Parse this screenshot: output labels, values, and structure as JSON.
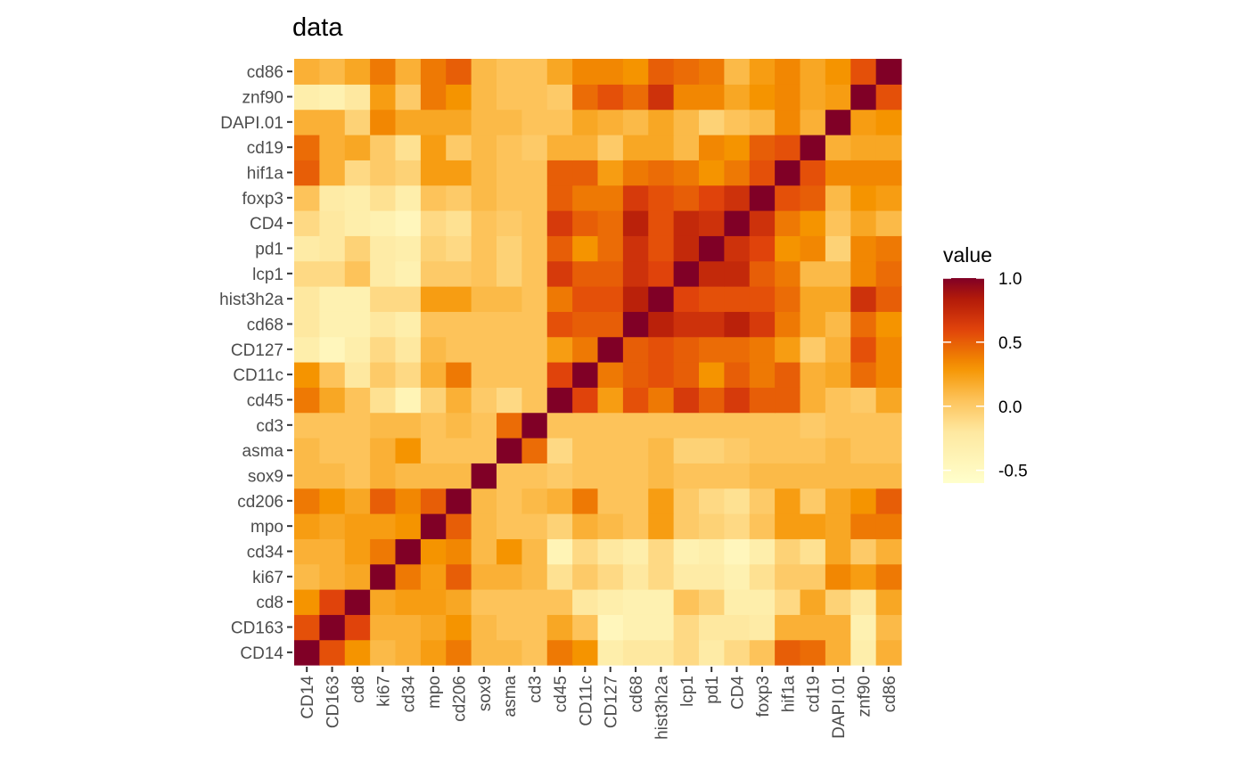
{
  "chart_data": {
    "type": "heatmap",
    "title": "data",
    "xlabel": "",
    "ylabel": "",
    "variables": [
      "CD14",
      "CD163",
      "cd8",
      "ki67",
      "cd34",
      "mpo",
      "cd206",
      "sox9",
      "asma",
      "cd3",
      "cd45",
      "CD11c",
      "CD127",
      "cd68",
      "hist3h2a",
      "lcp1",
      "pd1",
      "CD4",
      "foxp3",
      "hif1a",
      "cd19",
      "DAPI.01",
      "znf90",
      "cd86"
    ],
    "values": [
      [
        1.0,
        0.55,
        0.3,
        0.1,
        0.15,
        0.25,
        0.4,
        0.1,
        0.1,
        0.05,
        0.4,
        0.3,
        -0.3,
        -0.2,
        -0.2,
        -0.1,
        -0.25,
        -0.1,
        0.05,
        0.5,
        0.45,
        0.15,
        -0.3,
        0.15
      ],
      [
        0.55,
        1.0,
        0.6,
        0.15,
        0.15,
        0.2,
        0.3,
        0.1,
        0.05,
        0.05,
        0.2,
        0.05,
        -0.45,
        -0.35,
        -0.35,
        -0.1,
        -0.2,
        -0.2,
        -0.25,
        0.15,
        0.15,
        0.15,
        -0.35,
        0.1
      ],
      [
        0.3,
        0.6,
        1.0,
        0.2,
        0.25,
        0.25,
        0.2,
        0.05,
        0.05,
        0.05,
        0.05,
        -0.2,
        -0.3,
        -0.35,
        -0.35,
        0.05,
        -0.05,
        -0.3,
        -0.3,
        -0.1,
        0.2,
        -0.05,
        -0.2,
        0.2
      ],
      [
        0.1,
        0.15,
        0.2,
        1.0,
        0.4,
        0.25,
        0.5,
        0.15,
        0.15,
        0.1,
        -0.15,
        0.0,
        -0.1,
        -0.2,
        -0.1,
        -0.25,
        -0.25,
        -0.35,
        -0.15,
        0.0,
        0.0,
        0.35,
        0.25,
        0.4
      ],
      [
        0.15,
        0.15,
        0.25,
        0.4,
        1.0,
        0.3,
        0.35,
        0.1,
        0.3,
        0.1,
        -0.4,
        -0.1,
        -0.2,
        -0.3,
        -0.1,
        -0.35,
        -0.3,
        -0.45,
        -0.3,
        -0.05,
        -0.15,
        0.2,
        0.0,
        0.15
      ],
      [
        0.25,
        0.2,
        0.25,
        0.25,
        0.3,
        1.0,
        0.5,
        0.1,
        0.05,
        0.05,
        -0.05,
        0.15,
        0.1,
        0.05,
        0.25,
        0.0,
        -0.05,
        -0.1,
        0.05,
        0.25,
        0.25,
        0.2,
        0.4,
        0.4
      ],
      [
        0.4,
        0.3,
        0.2,
        0.5,
        0.35,
        0.5,
        1.0,
        0.1,
        0.05,
        0.1,
        0.15,
        0.4,
        0.05,
        0.05,
        0.25,
        0.0,
        -0.1,
        -0.15,
        0.0,
        0.25,
        0.0,
        0.2,
        0.3,
        0.5
      ],
      [
        0.1,
        0.1,
        0.05,
        0.15,
        0.1,
        0.1,
        0.1,
        1.0,
        0.05,
        0.05,
        0.0,
        0.05,
        0.05,
        0.05,
        0.1,
        0.05,
        0.05,
        0.05,
        0.1,
        0.1,
        0.1,
        0.1,
        0.1,
        0.1
      ],
      [
        0.1,
        0.05,
        0.05,
        0.15,
        0.3,
        0.05,
        0.05,
        0.05,
        1.0,
        0.45,
        -0.1,
        0.05,
        0.05,
        0.05,
        0.1,
        -0.05,
        -0.05,
        0.0,
        0.05,
        0.05,
        0.05,
        0.1,
        0.05,
        0.05
      ],
      [
        0.05,
        0.05,
        0.05,
        0.1,
        0.1,
        0.05,
        0.1,
        0.05,
        0.45,
        1.0,
        0.05,
        0.05,
        0.05,
        0.05,
        0.05,
        0.05,
        0.05,
        0.05,
        0.05,
        0.05,
        0.0,
        0.05,
        0.05,
        0.05
      ],
      [
        0.4,
        0.2,
        0.05,
        -0.15,
        -0.4,
        -0.05,
        0.15,
        0.0,
        -0.1,
        0.05,
        1.0,
        0.6,
        0.25,
        0.55,
        0.4,
        0.65,
        0.5,
        0.65,
        0.5,
        0.5,
        0.15,
        0.05,
        0.0,
        0.2
      ],
      [
        0.3,
        0.05,
        -0.2,
        0.0,
        -0.1,
        0.15,
        0.4,
        0.05,
        0.05,
        0.05,
        0.6,
        1.0,
        0.4,
        0.5,
        0.55,
        0.5,
        0.3,
        0.5,
        0.4,
        0.5,
        0.15,
        0.2,
        0.45,
        0.35
      ],
      [
        -0.3,
        -0.45,
        -0.3,
        -0.1,
        -0.2,
        0.1,
        0.05,
        0.05,
        0.05,
        0.05,
        0.25,
        0.4,
        1.0,
        0.5,
        0.55,
        0.5,
        0.45,
        0.45,
        0.4,
        0.25,
        0.0,
        0.15,
        0.55,
        0.35
      ],
      [
        -0.2,
        -0.35,
        -0.35,
        -0.2,
        -0.3,
        0.05,
        0.05,
        0.05,
        0.05,
        0.05,
        0.55,
        0.5,
        0.5,
        1.0,
        0.8,
        0.7,
        0.7,
        0.8,
        0.65,
        0.4,
        0.2,
        0.1,
        0.45,
        0.3
      ],
      [
        -0.2,
        -0.35,
        -0.35,
        -0.1,
        -0.1,
        0.25,
        0.25,
        0.1,
        0.1,
        0.05,
        0.4,
        0.55,
        0.55,
        0.8,
        1.0,
        0.6,
        0.55,
        0.55,
        0.55,
        0.45,
        0.2,
        0.2,
        0.7,
        0.5
      ],
      [
        -0.1,
        -0.1,
        0.05,
        -0.25,
        -0.35,
        0.0,
        0.0,
        0.05,
        -0.05,
        0.05,
        0.65,
        0.5,
        0.5,
        0.7,
        0.6,
        1.0,
        0.75,
        0.75,
        0.5,
        0.4,
        0.1,
        0.1,
        0.35,
        0.45
      ],
      [
        -0.25,
        -0.2,
        -0.05,
        -0.25,
        -0.3,
        -0.05,
        -0.1,
        0.05,
        -0.05,
        0.05,
        0.5,
        0.3,
        0.45,
        0.7,
        0.55,
        0.75,
        1.0,
        0.7,
        0.6,
        0.3,
        0.35,
        -0.05,
        0.35,
        0.4
      ],
      [
        -0.1,
        -0.2,
        -0.3,
        -0.35,
        -0.45,
        -0.1,
        -0.15,
        0.05,
        0.0,
        0.05,
        0.65,
        0.5,
        0.45,
        0.8,
        0.55,
        0.75,
        0.7,
        1.0,
        0.7,
        0.4,
        0.3,
        0.05,
        0.2,
        0.1
      ],
      [
        0.05,
        -0.25,
        -0.3,
        -0.15,
        -0.3,
        0.05,
        0.0,
        0.1,
        0.05,
        0.05,
        0.5,
        0.4,
        0.4,
        0.65,
        0.55,
        0.5,
        0.6,
        0.7,
        1.0,
        0.55,
        0.5,
        0.1,
        0.3,
        0.25
      ],
      [
        0.5,
        0.15,
        -0.1,
        0.0,
        -0.05,
        0.25,
        0.25,
        0.1,
        0.05,
        0.05,
        0.5,
        0.5,
        0.25,
        0.4,
        0.45,
        0.4,
        0.3,
        0.4,
        0.55,
        1.0,
        0.55,
        0.35,
        0.35,
        0.35
      ],
      [
        0.45,
        0.15,
        0.2,
        0.0,
        -0.15,
        0.25,
        0.0,
        0.1,
        0.05,
        0.0,
        0.15,
        0.15,
        0.0,
        0.2,
        0.2,
        0.1,
        0.35,
        0.3,
        0.5,
        0.55,
        1.0,
        0.15,
        0.2,
        0.2
      ],
      [
        0.15,
        0.15,
        -0.05,
        0.35,
        0.2,
        0.2,
        0.2,
        0.1,
        0.1,
        0.05,
        0.05,
        0.2,
        0.15,
        0.1,
        0.2,
        0.1,
        -0.05,
        0.05,
        0.1,
        0.35,
        0.15,
        1.0,
        0.25,
        0.3
      ],
      [
        -0.3,
        -0.35,
        -0.2,
        0.25,
        0.0,
        0.4,
        0.3,
        0.1,
        0.05,
        0.05,
        0.0,
        0.45,
        0.55,
        0.45,
        0.7,
        0.35,
        0.35,
        0.2,
        0.3,
        0.35,
        0.2,
        0.25,
        1.0,
        0.55
      ],
      [
        0.15,
        0.1,
        0.2,
        0.4,
        0.15,
        0.4,
        0.5,
        0.1,
        0.05,
        0.05,
        0.2,
        0.35,
        0.35,
        0.3,
        0.5,
        0.45,
        0.4,
        0.1,
        0.25,
        0.35,
        0.2,
        0.3,
        0.55,
        1.0
      ]
    ],
    "legend": {
      "title": "value",
      "ticks": [
        1.0,
        0.5,
        0.0,
        -0.5
      ],
      "tick_labels": [
        "1.0",
        "0.5",
        "0.0",
        "-0.5"
      ],
      "range": [
        -0.6,
        1.0
      ],
      "placement": "right"
    },
    "colorscale": [
      {
        "v": -0.6,
        "c": "#ffffcc"
      },
      {
        "v": -0.2,
        "c": "#fee8a0"
      },
      {
        "v": 0.05,
        "c": "#fdc35a"
      },
      {
        "v": 0.3,
        "c": "#f59400"
      },
      {
        "v": 0.6,
        "c": "#e0430b"
      },
      {
        "v": 0.85,
        "c": "#b0180a"
      },
      {
        "v": 1.0,
        "c": "#800026"
      }
    ],
    "grid": false
  }
}
